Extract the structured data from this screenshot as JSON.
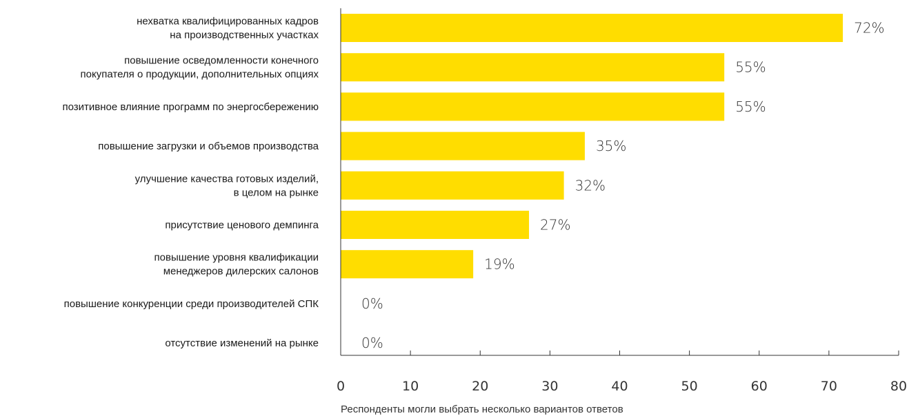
{
  "chart_data": {
    "type": "bar",
    "orientation": "horizontal",
    "categories": [
      [
        "нехватка квалифицированных кадров",
        "на производственных участках"
      ],
      [
        "повышение осведомленности конечного",
        "покупателя о продукции, дополнительных опциях"
      ],
      [
        "позитивное влияние программ по энергосбережению"
      ],
      [
        "повышение загрузки и объемов производства"
      ],
      [
        "улучшение качества готовых изделий,",
        "в целом на рынке"
      ],
      [
        "присутствие ценового демпинга"
      ],
      [
        "повышение уровня квалификации",
        "менеджеров дилерских салонов"
      ],
      [
        "повышение конкуренции среди производителей СПК"
      ],
      [
        "отсутствие изменений на рынке"
      ]
    ],
    "values": [
      72,
      55,
      55,
      35,
      32,
      27,
      19,
      0,
      0
    ],
    "value_labels": [
      "72%",
      "55%",
      "55%",
      "35%",
      "32%",
      "27%",
      "19%",
      "0%",
      "0%"
    ],
    "xlim": [
      0,
      80
    ],
    "xticks": [
      0,
      10,
      20,
      30,
      40,
      50,
      60,
      70,
      80
    ],
    "note": "Респонденты могли выбрать несколько вариантов ответов",
    "bar_color": "#FFDD00",
    "grid": false
  }
}
